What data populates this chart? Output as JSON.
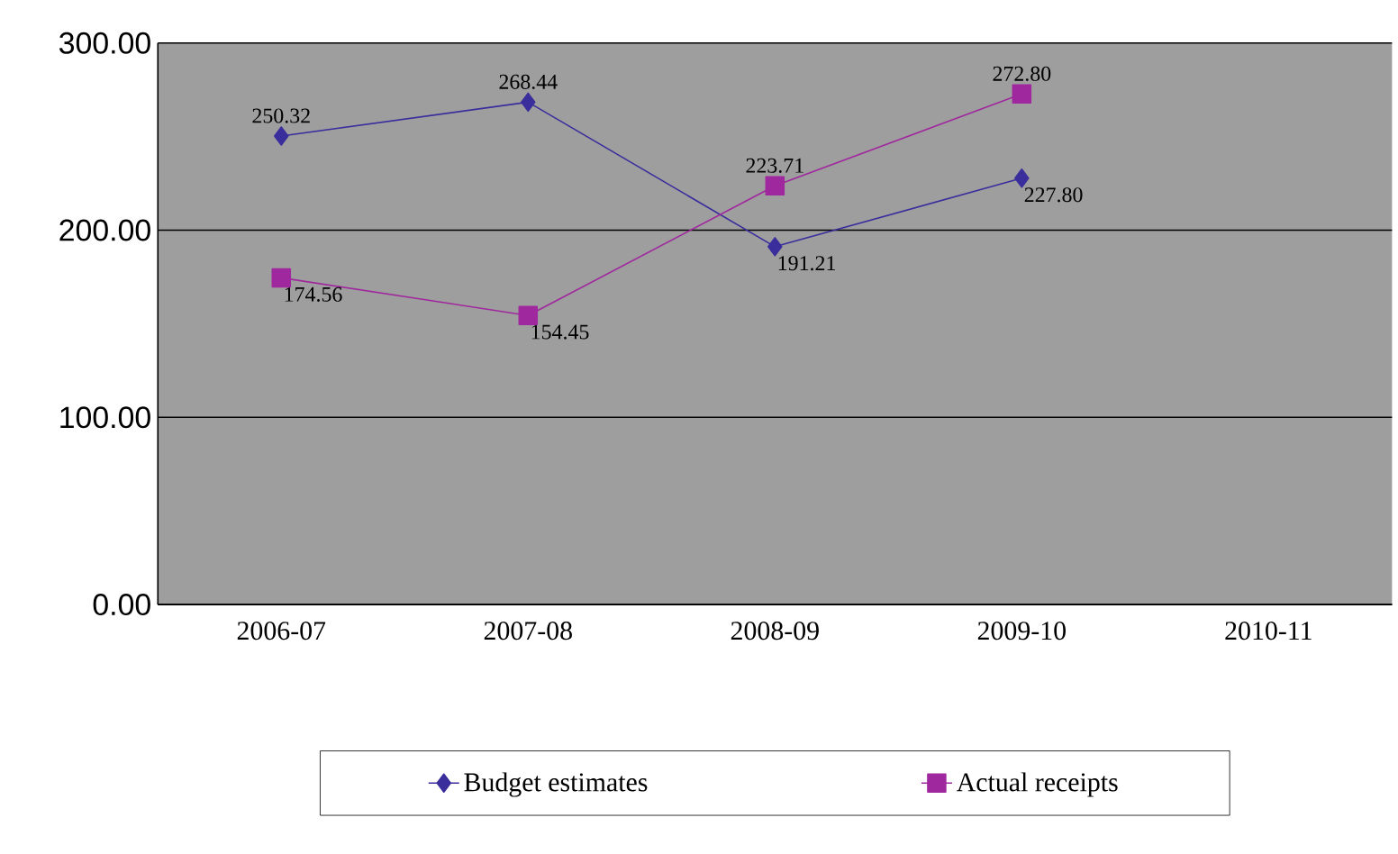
{
  "chart_data": {
    "type": "line",
    "categories": [
      "2006-07",
      "2007-08",
      "2008-09",
      "2009-10",
      "2010-11"
    ],
    "series": [
      {
        "name": "Budget estimates",
        "color": "#3a2e9c",
        "marker": "diamond",
        "values": [
          250.32,
          268.44,
          191.21,
          227.8,
          null
        ],
        "value_labels": [
          "250.32",
          "268.44",
          "191.21",
          "227.80",
          null
        ]
      },
      {
        "name": "Actual receipts",
        "color": "#a0289e",
        "marker": "square",
        "values": [
          174.56,
          154.45,
          223.71,
          272.8,
          null
        ],
        "value_labels": [
          "174.56",
          "154.45",
          "223.71",
          "272.80",
          null
        ]
      }
    ],
    "ylim": [
      0,
      300
    ],
    "yticks": [
      {
        "value": 0,
        "label": "0.00"
      },
      {
        "value": 100,
        "label": "100.00"
      },
      {
        "value": 200,
        "label": "200.00"
      },
      {
        "value": 300,
        "label": "300.00"
      }
    ],
    "grid": "y",
    "legend": "bottom",
    "line_style": "solid"
  }
}
